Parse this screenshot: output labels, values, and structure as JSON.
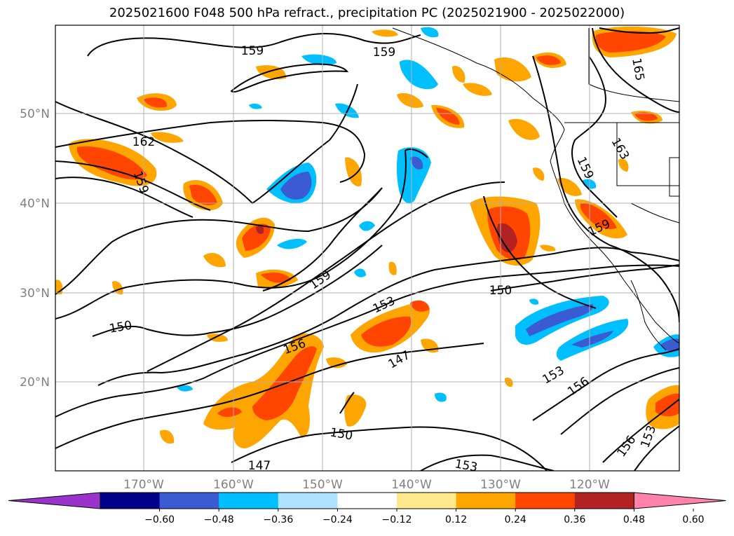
{
  "title": "2025021600 F048 500 hPa refract., precipitation PC (2025021900 - 2025022000)",
  "lat_labels": [
    "50°N",
    "40°N",
    "30°N",
    "20°N"
  ],
  "lon_labels": [
    "170°W",
    "160°W",
    "150°W",
    "140°W",
    "130°W",
    "120°W"
  ],
  "colorbar": {
    "colors": [
      "#9933cc",
      "#00008b",
      "#3a5bd1",
      "#00bfff",
      "#aee2ff",
      "#ffffff",
      "#ffe98c",
      "#ffa500",
      "#ff4500",
      "#b22222",
      "#ff82ab"
    ],
    "ticks": [
      "−0.60",
      "−0.48",
      "−0.36",
      "−0.24",
      "−0.12",
      "0.12",
      "0.24",
      "0.36",
      "0.48",
      "0.60"
    ]
  },
  "contour_labels": [
    "159",
    "159",
    "162",
    "159",
    "165",
    "163",
    "159",
    "159",
    "159",
    "150",
    "153",
    "150",
    "156",
    "147",
    "153",
    "156",
    "150",
    "147",
    "153",
    "156",
    "153"
  ]
}
